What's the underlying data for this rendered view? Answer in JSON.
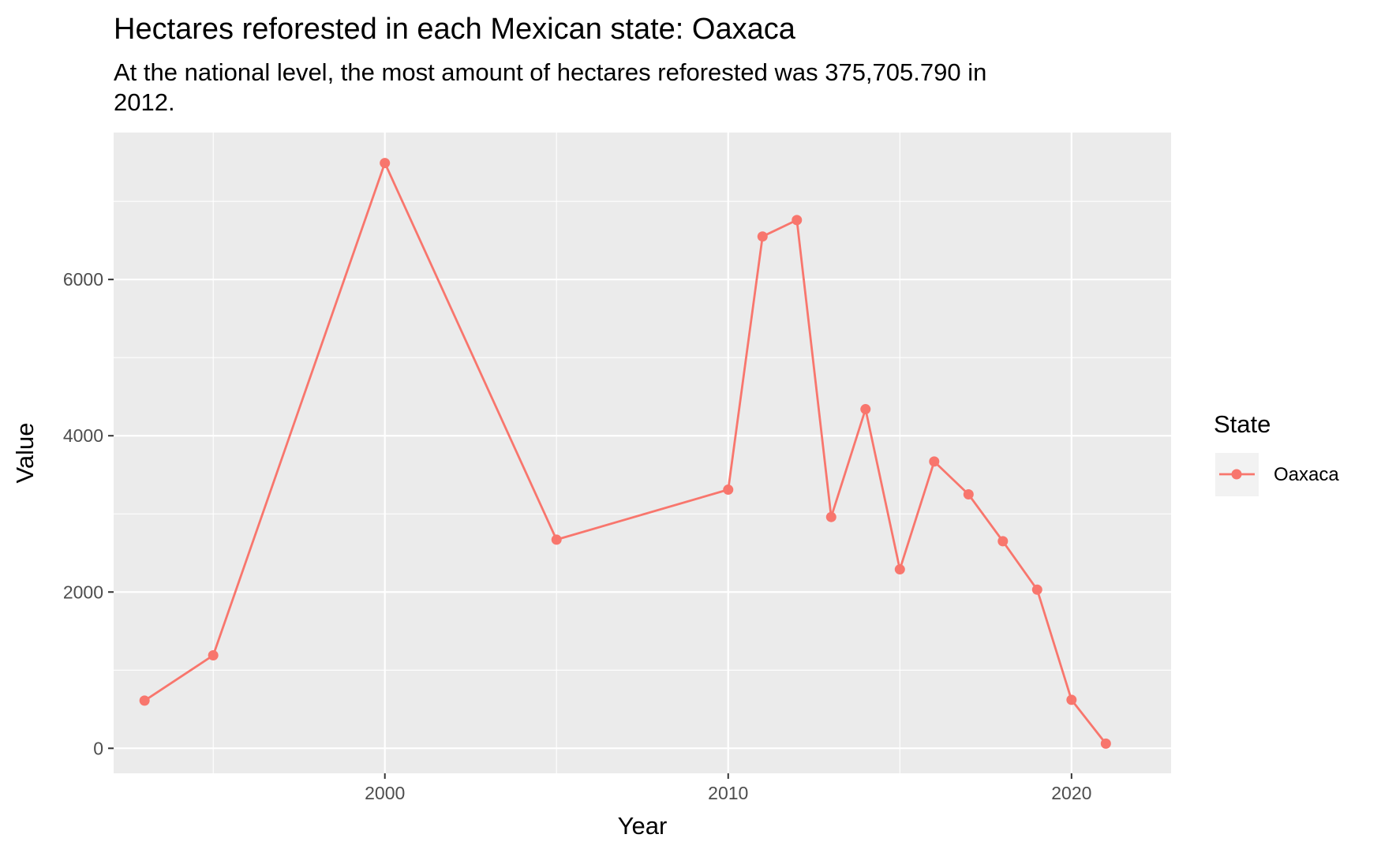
{
  "chart_data": {
    "type": "line",
    "title": "Hectares reforested in each Mexican state: Oaxaca",
    "subtitle_lines": [
      "At the national level, the most amount of hectares reforested was 375,705.790 in",
      "2012."
    ],
    "xlabel": "Year",
    "ylabel": "Value",
    "x_ticks": [
      2000,
      2010,
      2020
    ],
    "y_ticks": [
      0,
      2000,
      4000,
      6000
    ],
    "xlim": [
      1992.1,
      2022.9
    ],
    "ylim": [
      -320,
      7880
    ],
    "grid": true,
    "legend": {
      "title": "State",
      "position": "right"
    },
    "series": [
      {
        "name": "Oaxaca",
        "color": "#F8766D",
        "x": [
          1993,
          1995,
          2000,
          2005,
          2010,
          2011,
          2012,
          2013,
          2014,
          2015,
          2016,
          2017,
          2018,
          2019,
          2020,
          2021
        ],
        "y": [
          610,
          1190,
          7490,
          2670,
          3310,
          6550,
          6760,
          2960,
          4340,
          2290,
          3670,
          3250,
          2650,
          2030,
          620,
          60
        ]
      }
    ],
    "colors": {
      "panel_background": "#EBEBEB",
      "grid": "#FFFFFF",
      "legend_key_background": "#F2F2F2"
    }
  }
}
